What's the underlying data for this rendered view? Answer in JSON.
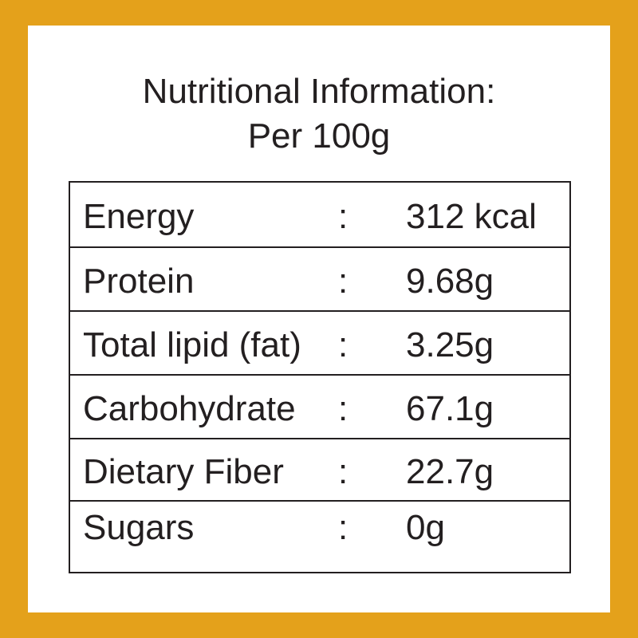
{
  "header": {
    "title": [
      "Nutritional Information:",
      "Per 100g"
    ]
  },
  "table": {
    "rows": [
      [
        "Energy",
        ":",
        "312 kcal"
      ],
      [
        "Protein",
        ":",
        "9.68g"
      ],
      [
        "Total lipid (fat)",
        ":",
        "3.25g"
      ],
      [
        "Carbohydrate",
        ":",
        "67.1g"
      ],
      [
        "Dietary Fiber",
        ":",
        "22.7g"
      ],
      [
        "Sugars",
        ":",
        "0g"
      ]
    ]
  }
}
